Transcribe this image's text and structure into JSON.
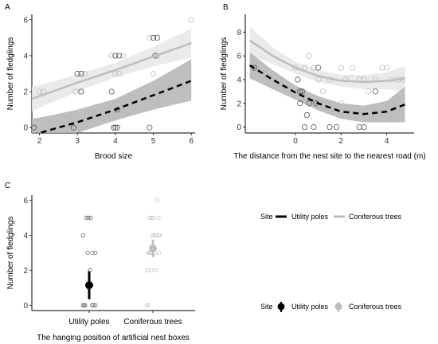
{
  "colors": {
    "utility": "#000000",
    "coniferous": "#bdbdbd",
    "ci_utility": "#b3b3b3",
    "ci_coniferous": "#e6e6e6",
    "point_utility": "#555555",
    "point_coniferous": "#bdbdbd"
  },
  "chart_data": [
    {
      "panel": "A",
      "type": "scatter",
      "xlabel": "Brood size",
      "ylabel": "Number of fledglings",
      "xlim": [
        1.8,
        6.1
      ],
      "ylim": [
        -0.3,
        6.3
      ],
      "xticks": [
        2,
        3,
        4,
        5,
        6
      ],
      "yticks": [
        0,
        2,
        4,
        6
      ],
      "series": [
        {
          "key": "utility",
          "points": [
            [
              1.85,
              0
            ],
            [
              2.9,
              0
            ],
            [
              3.0,
              3
            ],
            [
              3.1,
              3
            ],
            [
              3.1,
              2
            ],
            [
              3.9,
              2
            ],
            [
              3.95,
              0
            ],
            [
              4.0,
              0
            ],
            [
              4.05,
              0
            ],
            [
              4.0,
              4
            ],
            [
              4.1,
              4
            ],
            [
              4.05,
              1
            ],
            [
              4.9,
              0
            ],
            [
              5.0,
              5
            ],
            [
              5.1,
              5
            ],
            [
              5.05,
              4
            ]
          ],
          "fit": [
            [
              1.8,
              -0.4
            ],
            [
              2,
              -0.3
            ],
            [
              3,
              0.3
            ],
            [
              4,
              1.0
            ],
            [
              5,
              1.8
            ],
            [
              6,
              2.6
            ]
          ],
          "ci_upper": [
            [
              1.8,
              0.5
            ],
            [
              2,
              0.55
            ],
            [
              3,
              1.0
            ],
            [
              4,
              1.6
            ],
            [
              5,
              2.6
            ],
            [
              6,
              3.8
            ]
          ],
          "ci_lower": [
            [
              1.8,
              -1.0
            ],
            [
              2,
              -0.9
            ],
            [
              3,
              -0.3
            ],
            [
              4,
              0.4
            ],
            [
              5,
              1.0
            ],
            [
              6,
              1.5
            ]
          ]
        },
        {
          "key": "coniferous",
          "points": [
            [
              2.0,
              2
            ],
            [
              2.95,
              2
            ],
            [
              3.0,
              3
            ],
            [
              3.1,
              3
            ],
            [
              3.2,
              3
            ],
            [
              3.9,
              4
            ],
            [
              4.0,
              4
            ],
            [
              4.1,
              3
            ],
            [
              4.2,
              4
            ],
            [
              4.9,
              5
            ],
            [
              5.0,
              3
            ],
            [
              5.1,
              4
            ],
            [
              5.0,
              5
            ],
            [
              6.0,
              6
            ],
            [
              2.1,
              2
            ],
            [
              4.0,
              3
            ]
          ],
          "fit": [
            [
              1.8,
              1.6
            ],
            [
              2,
              1.75
            ],
            [
              3,
              2.5
            ],
            [
              4,
              3.2
            ],
            [
              5,
              3.95
            ],
            [
              6,
              4.7
            ]
          ],
          "ci_upper": [
            [
              1.8,
              2.3
            ],
            [
              2,
              2.35
            ],
            [
              3,
              2.95
            ],
            [
              4,
              3.6
            ],
            [
              5,
              4.5
            ],
            [
              6,
              5.5
            ]
          ],
          "ci_lower": [
            [
              1.8,
              0.9
            ],
            [
              2,
              1.1
            ],
            [
              3,
              2.0
            ],
            [
              4,
              2.8
            ],
            [
              5,
              3.4
            ],
            [
              6,
              3.9
            ]
          ]
        }
      ]
    },
    {
      "panel": "B",
      "type": "scatter",
      "xlabel": "The distance from the nest site to the nearest road (m)",
      "ylabel": "Number of fledglings",
      "xlim": [
        -2.2,
        5.2
      ],
      "ylim": [
        -0.5,
        9.5
      ],
      "xticks": [
        0,
        2,
        4
      ],
      "yticks": [
        0,
        2,
        4,
        6,
        8
      ],
      "series": [
        {
          "key": "utility",
          "points": [
            [
              -1.8,
              5
            ],
            [
              0.1,
              4
            ],
            [
              0.2,
              3
            ],
            [
              0.3,
              3
            ],
            [
              0.6,
              2
            ],
            [
              0.2,
              2
            ],
            [
              0.5,
              1
            ],
            [
              0.4,
              0
            ],
            [
              0.8,
              0
            ],
            [
              1.0,
              5
            ],
            [
              2.8,
              0
            ],
            [
              3.0,
              0
            ],
            [
              1.5,
              0
            ],
            [
              0.9,
              2
            ],
            [
              1.8,
              0
            ],
            [
              3.5,
              3
            ]
          ],
          "fit": [
            [
              -2,
              5.2
            ],
            [
              -1,
              4.0
            ],
            [
              0,
              2.9
            ],
            [
              1,
              2.0
            ],
            [
              2,
              1.3
            ],
            [
              3,
              1.1
            ],
            [
              4,
              1.3
            ],
            [
              4.8,
              1.9
            ]
          ],
          "ci_upper": [
            [
              -2,
              6.3
            ],
            [
              -1,
              4.8
            ],
            [
              0,
              3.5
            ],
            [
              1,
              2.6
            ],
            [
              2,
              2.0
            ],
            [
              3,
              1.8
            ],
            [
              4,
              2.2
            ],
            [
              4.8,
              3.4
            ]
          ],
          "ci_lower": [
            [
              -2,
              4.1
            ],
            [
              -1,
              3.2
            ],
            [
              0,
              2.3
            ],
            [
              1,
              1.4
            ],
            [
              2,
              0.7
            ],
            [
              3,
              0.4
            ],
            [
              4,
              0.4
            ],
            [
              4.8,
              0.4
            ]
          ]
        },
        {
          "key": "coniferous",
          "points": [
            [
              0.0,
              5
            ],
            [
              0.4,
              5
            ],
            [
              0.6,
              6
            ],
            [
              0.8,
              5
            ],
            [
              1.0,
              4
            ],
            [
              1.5,
              4
            ],
            [
              2.0,
              5
            ],
            [
              2.2,
              4
            ],
            [
              2.5,
              5
            ],
            [
              2.8,
              4
            ],
            [
              3.0,
              4
            ],
            [
              3.2,
              3
            ],
            [
              3.5,
              4
            ],
            [
              3.8,
              5
            ],
            [
              4.0,
              5
            ],
            [
              4.2,
              4
            ],
            [
              4.5,
              4
            ],
            [
              4.7,
              4
            ],
            [
              2.0,
              2
            ],
            [
              3.0,
              1
            ],
            [
              0.2,
              3
            ],
            [
              1.2,
              3
            ]
          ],
          "fit": [
            [
              -2,
              7.3
            ],
            [
              -1,
              6.0
            ],
            [
              0,
              5.0
            ],
            [
              1,
              4.3
            ],
            [
              2,
              3.9
            ],
            [
              3,
              3.8
            ],
            [
              4,
              3.9
            ],
            [
              4.8,
              4.1
            ]
          ],
          "ci_upper": [
            [
              -2,
              8.5
            ],
            [
              -1,
              6.7
            ],
            [
              0,
              5.5
            ],
            [
              1,
              4.8
            ],
            [
              2,
              4.4
            ],
            [
              3,
              4.4
            ],
            [
              4,
              4.6
            ],
            [
              4.8,
              5.2
            ]
          ],
          "ci_lower": [
            [
              -2,
              6.1
            ],
            [
              -1,
              5.3
            ],
            [
              0,
              4.5
            ],
            [
              1,
              3.8
            ],
            [
              2,
              3.4
            ],
            [
              3,
              3.2
            ],
            [
              4,
              3.2
            ],
            [
              4.8,
              3.0
            ]
          ]
        }
      ]
    },
    {
      "panel": "C",
      "type": "scatter",
      "xlabel": "The hanging position of artificial nest boxes",
      "ylabel": "Number of fledglings",
      "categories": [
        "Utility poles",
        "Coniferous trees"
      ],
      "ylim": [
        -0.3,
        6.3
      ],
      "yticks": [
        0,
        2,
        4,
        6
      ],
      "series": [
        {
          "key": "utility",
          "mean": 1.15,
          "ci": [
            0.35,
            1.95
          ],
          "points": [
            [
              -0.2,
              0
            ],
            [
              -0.16,
              0
            ],
            [
              -0.13,
              0
            ],
            [
              0.1,
              0
            ],
            [
              0.14,
              0
            ],
            [
              0.2,
              0
            ],
            [
              -0.2,
              4
            ],
            [
              -0.1,
              5
            ],
            [
              -0.03,
              5
            ],
            [
              0.05,
              5
            ],
            [
              0.1,
              3
            ],
            [
              0.2,
              3
            ],
            [
              -0.05,
              3
            ],
            [
              0.03,
              2
            ],
            [
              -0.02,
              1
            ]
          ]
        },
        {
          "key": "coniferous",
          "mean": 3.25,
          "ci": [
            2.75,
            3.75
          ],
          "points": [
            [
              -0.2,
              0
            ],
            [
              -0.15,
              0
            ],
            [
              -0.15,
              3
            ],
            [
              -0.12,
              3
            ],
            [
              -0.08,
              3
            ],
            [
              -0.05,
              2
            ],
            [
              -0.1,
              5
            ],
            [
              -0.05,
              5
            ],
            [
              0.02,
              5
            ],
            [
              0.05,
              4
            ],
            [
              0.1,
              4
            ],
            [
              0.18,
              5
            ],
            [
              0.2,
              4
            ],
            [
              0.22,
              4
            ],
            [
              0.15,
              6
            ],
            [
              0.1,
              2
            ],
            [
              0.2,
              3
            ],
            [
              -0.18,
              2
            ],
            [
              0.07,
              3
            ],
            [
              -0.02,
              4
            ]
          ]
        }
      ]
    }
  ],
  "legends": {
    "line_legend": {
      "title": "Site",
      "items": [
        "Utility poles",
        "Coniferous trees"
      ]
    },
    "point_legend": {
      "title": "Site",
      "items": [
        "Utility poles",
        "Coniferous trees"
      ]
    }
  }
}
